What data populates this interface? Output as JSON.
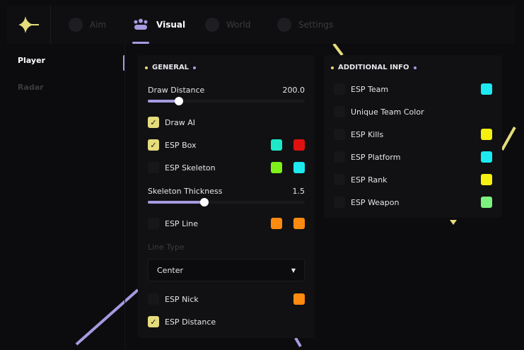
{
  "nav": {
    "tabs": [
      {
        "label": "Aim",
        "icon": "crosshair-icon"
      },
      {
        "label": "Visual",
        "icon": "users-icon",
        "active": true
      },
      {
        "label": "World",
        "icon": "globe-icon"
      },
      {
        "label": "Settings",
        "icon": "gear-icon"
      }
    ]
  },
  "sidebar": {
    "items": [
      {
        "label": "Player",
        "active": true
      },
      {
        "label": "Radar"
      }
    ]
  },
  "general": {
    "title": "GENERAL",
    "draw_distance": {
      "label": "Draw Distance",
      "value": "200.0",
      "fraction": 0.2
    },
    "draw_ai": {
      "label": "Draw AI",
      "checked": true
    },
    "esp_box": {
      "label": "ESP Box",
      "checked": true,
      "colors": [
        "#1de9c8",
        "#e01010"
      ]
    },
    "esp_skeleton": {
      "label": "ESP Skeleton",
      "checked": false,
      "colors": [
        "#7ef01a",
        "#1de9f0"
      ]
    },
    "skeleton_thickness": {
      "label": "Skeleton Thickness",
      "value": "1.5",
      "fraction": 0.36
    },
    "esp_line": {
      "label": "ESP Line",
      "checked": false,
      "colors": [
        "#ff8a10",
        "#ff8a10"
      ]
    },
    "line_type": {
      "label": "Line Type",
      "value": "Center"
    },
    "esp_nick": {
      "label": "ESP Nick",
      "checked": false,
      "colors": [
        "#ff8a10"
      ]
    },
    "esp_distance": {
      "label": "ESP Distance",
      "checked": true
    }
  },
  "additional": {
    "title": "ADDITIONAL INFO",
    "items": [
      {
        "label": "ESP Team",
        "checked": false,
        "color": "#1de9f0"
      },
      {
        "label": "Unique Team Color",
        "checked": false
      },
      {
        "label": "ESP Kills",
        "checked": false,
        "color": "#f5f010"
      },
      {
        "label": "ESP Platform",
        "checked": false,
        "color": "#1de9f0"
      },
      {
        "label": "ESP Rank",
        "checked": false,
        "color": "#f5f010"
      },
      {
        "label": "ESP Weapon",
        "checked": false,
        "color": "#7ef07e"
      }
    ]
  },
  "colors": {
    "accent": "#a49be0",
    "yellow": "#e5dc7c"
  }
}
